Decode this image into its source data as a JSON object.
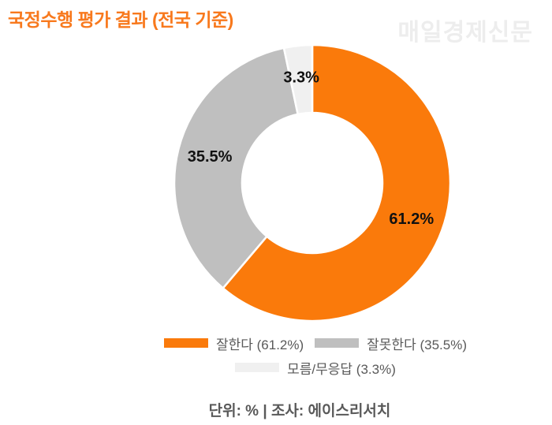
{
  "title": "국정수행 평가 결과 (전국 기준)",
  "watermark": "매일경제신문",
  "caption": "단위: % | 조사: 에이스리서치",
  "colors": {
    "title_orange": "#F8791D",
    "watermark_gray": "#EDEDED",
    "legend_text": "#595959",
    "slice_label": "#111111",
    "slice_border": "#FFFFFF"
  },
  "chart_data": {
    "type": "pie",
    "donut": true,
    "title": "국정수행 평가 결과 (전국 기준)",
    "unit": "%",
    "source": "에이스리서치",
    "categories": [
      "잘한다",
      "잘못한다",
      "모름/무응답"
    ],
    "values": [
      61.2,
      35.5,
      3.3
    ],
    "slice_labels": [
      "61.2%",
      "35.5%",
      "3.3%"
    ],
    "legend_entries": [
      "잘한다 (61.2%)",
      "잘못한다 (35.5%)",
      "모름/무응답 (3.3%)"
    ],
    "slice_colors": [
      "#FA7A0B",
      "#BFBFBF",
      "#F0F0F0"
    ],
    "start_angle": 0,
    "direction": "clockwise",
    "legend_position": "bottom",
    "legend_rows": [
      [
        0,
        1
      ],
      [
        2
      ]
    ]
  }
}
